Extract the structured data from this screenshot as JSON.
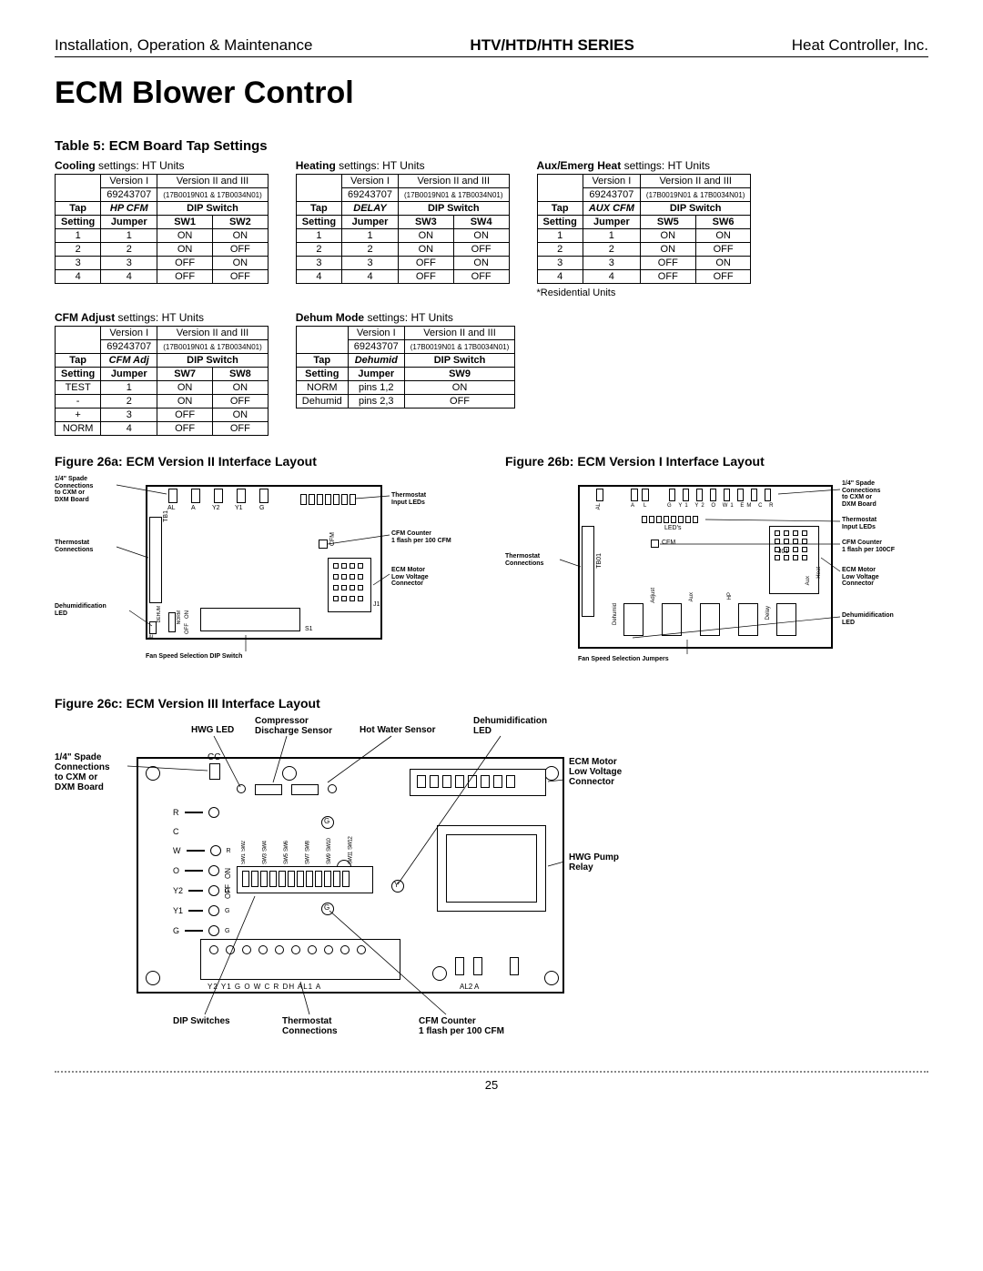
{
  "header": {
    "left": "Installation, Operation & Maintenance",
    "center": "HTV/HTD/HTH SERIES",
    "right": "Heat Controller, Inc."
  },
  "title": "ECM Blower Control",
  "table5_heading": "Table 5: ECM Board Tap Settings",
  "page_number": "25",
  "tables_keys": [
    "cooling",
    "heating",
    "aux",
    "cfm_adjust",
    "dehum"
  ],
  "tables": {
    "cooling": {
      "caption_bold": "Cooling",
      "caption_rest": " settings: HT Units",
      "meta_col": "HP CFM",
      "sw_a": "SW1",
      "sw_b": "SW2",
      "v1": "Version I",
      "v1_sub": "69243707",
      "v2": "Version II and III",
      "v2_sub": "(17B0019N01 & 17B0034N01)",
      "h_tap": "Tap",
      "h_setting": "Setting",
      "h_dip": "DIP Switch",
      "h_jumper": "Jumper",
      "rows": [
        {
          "tap": "1",
          "jumper": "1",
          "a": "ON",
          "b": "ON"
        },
        {
          "tap": "2",
          "jumper": "2",
          "a": "ON",
          "b": "OFF"
        },
        {
          "tap": "3",
          "jumper": "3",
          "a": "OFF",
          "b": "ON"
        },
        {
          "tap": "4",
          "jumper": "4",
          "a": "OFF",
          "b": "OFF"
        }
      ]
    },
    "heating": {
      "caption_bold": "Heating",
      "caption_rest": " settings: HT Units",
      "meta_col": "DELAY",
      "sw_a": "SW3",
      "sw_b": "SW4",
      "v1": "Version I",
      "v1_sub": "69243707",
      "v2": "Version II and III",
      "v2_sub": "(17B0019N01 & 17B0034N01)",
      "h_tap": "Tap",
      "h_setting": "Setting",
      "h_dip": "DIP Switch",
      "h_jumper": "Jumper",
      "rows": [
        {
          "tap": "1",
          "jumper": "1",
          "a": "ON",
          "b": "ON"
        },
        {
          "tap": "2",
          "jumper": "2",
          "a": "ON",
          "b": "OFF"
        },
        {
          "tap": "3",
          "jumper": "3",
          "a": "OFF",
          "b": "ON"
        },
        {
          "tap": "4",
          "jumper": "4",
          "a": "OFF",
          "b": "OFF"
        }
      ]
    },
    "aux": {
      "caption_bold": "Aux/Emerg Heat",
      "caption_rest": " settings: HT Units",
      "meta_col": "AUX CFM",
      "sw_a": "SW5",
      "sw_b": "SW6",
      "v1": "Version I",
      "v1_sub": "69243707",
      "v2": "Version II and III",
      "v2_sub": "(17B0019N01 & 17B0034N01)",
      "h_tap": "Tap",
      "h_setting": "Setting",
      "h_dip": "DIP Switch",
      "h_jumper": "Jumper",
      "rows": [
        {
          "tap": "1",
          "jumper": "1",
          "a": "ON",
          "b": "ON"
        },
        {
          "tap": "2",
          "jumper": "2",
          "a": "ON",
          "b": "OFF"
        },
        {
          "tap": "3",
          "jumper": "3",
          "a": "OFF",
          "b": "ON"
        },
        {
          "tap": "4",
          "jumper": "4",
          "a": "OFF",
          "b": "OFF"
        }
      ],
      "note": "*Residential Units"
    },
    "cfm_adjust": {
      "caption_bold": "CFM Adjust",
      "caption_rest": " settings: HT Units",
      "meta_col": "CFM Adj",
      "sw_a": "SW7",
      "sw_b": "SW8",
      "v1": "Version I",
      "v1_sub": "69243707",
      "v2": "Version II and III",
      "v2_sub": "(17B0019N01 & 17B0034N01)",
      "h_tap": "Tap",
      "h_setting": "Setting",
      "h_dip": "DIP Switch",
      "h_jumper": "Jumper",
      "rows": [
        {
          "tap": "TEST",
          "jumper": "1",
          "a": "ON",
          "b": "ON"
        },
        {
          "tap": "-",
          "jumper": "2",
          "a": "ON",
          "b": "OFF"
        },
        {
          "tap": "+",
          "jumper": "3",
          "a": "OFF",
          "b": "ON"
        },
        {
          "tap": "NORM",
          "jumper": "4",
          "a": "OFF",
          "b": "OFF"
        }
      ]
    },
    "dehum": {
      "caption_bold": "Dehum Mode",
      "caption_rest": " settings: HT Units",
      "meta_col": "Dehumid",
      "sw_a": "SW9",
      "sw_b": "",
      "v1": "Version I",
      "v1_sub": "69243707",
      "v2": "Version II and III",
      "v2_sub": "(17B0019N01 & 17B0034N01)",
      "h_tap": "Tap",
      "h_setting": "Setting",
      "h_dip": "DIP Switch",
      "h_jumper": "Jumper",
      "single_sw": true,
      "rows": [
        {
          "tap": "NORM",
          "jumper": "pins 1,2",
          "a": "ON"
        },
        {
          "tap": "Dehumid",
          "jumper": "pins 2,3",
          "a": "OFF"
        }
      ]
    }
  },
  "fig26a": {
    "heading": "Figure 26a: ECM Version II Interface Layout",
    "labels": {
      "spade": "1/4\" Spade\nConnections\nto CXM or\nDXM Board",
      "tstat_leds": "Thermostat\nInput LEDs",
      "tstat_conn": "Thermostat\nConnections",
      "cfm_counter": "CFM Counter\n1 flash per 100 CFM",
      "ecm_motor": "ECM Motor\nLow Voltage\nConnector",
      "dehum_led": "Dehumidification\nLED",
      "fan_speed": "Fan Speed Selection DIP Switch",
      "cfm": "CFM",
      "on": "ON",
      "off": "OFF",
      "dehum": "DEHUM",
      "norm": "NORM",
      "al": "AL",
      "a": "A",
      "y2": "Y2",
      "y1": "Y1",
      "g": "G",
      "o": "O",
      "w": "W",
      "c": "C",
      "r": "R",
      "dh": "DH",
      "al1": "AL1",
      "tb1": "TB1",
      "j1": "J1",
      "s1": "S1",
      "sw": "SW9 SW8 SW7 SW6 SW5 SW4 SW3 SW2 SW1"
    }
  },
  "fig26b": {
    "heading": "Figure 26b: ECM Version I Interface Layout",
    "labels": {
      "spade": "1/4\" Spade\nConnections\nto CXM or\nDXM Board",
      "tstat_leds": "Thermostat\nInput LEDs",
      "tstat_conn": "Thermostat\nConnections",
      "cfm_counter": "CFM Counter\n1 flash per 100CF",
      "ecm_motor": "ECM Motor\nLow Voltage\nConnector",
      "dehum_led": "Dehumidification\nLED",
      "fan_speed": "Fan Speed Selection Jumpers",
      "leds": "LED's",
      "cfm": "CFM",
      "j01": "J01",
      "tb01": "TB01",
      "al": "AL",
      "a": "A",
      "l": "L",
      "g": "G",
      "y1": "Y1",
      "y2": "Y2",
      "o": "O",
      "w1": "W1",
      "em": "EM",
      "c": "C",
      "r": "R",
      "nc": "NC",
      "heat": "Heat",
      "aux": "Aux",
      "adjust": "Adjust",
      "delay": "Delay",
      "dehumid": "Dehumid",
      "hp": "HP"
    }
  },
  "fig26c": {
    "heading": "Figure 26c: ECM Version III Interface Layout",
    "labels": {
      "spade": "1/4\" Spade\nConnections\nto CXM or\nDXM Board",
      "hwg_led": "HWG LED",
      "comp_sensor": "Compressor\nDischarge Sensor",
      "hot_water": "Hot Water Sensor",
      "dehum_led": "Dehumidification\nLED",
      "ecm_motor": "ECM Motor\nLow Voltage\nConnector",
      "hwg_pump": "HWG Pump\nRelay",
      "dip_switches": "DIP Switches",
      "tstat_conn": "Thermostat\nConnections",
      "cfm_counter": "CFM Counter\n1 flash per 100 CFM",
      "on": "ON",
      "off": "OFF",
      "cc": "CC",
      "r": "R",
      "c": "C",
      "w": "W",
      "o": "O",
      "y2": "Y2",
      "y1": "Y1",
      "g": "G",
      "gl": "G",
      "y": "Y",
      "terminals": "Y2  Y1    G   O   W    C   R  DH AL1  A",
      "al2_a": "AL2        A",
      "sw_row": "SW1 SW2 SW3 SW4 SW5 SW6 SW7 SW8 SW9 SW10 SW11 SW12"
    }
  }
}
